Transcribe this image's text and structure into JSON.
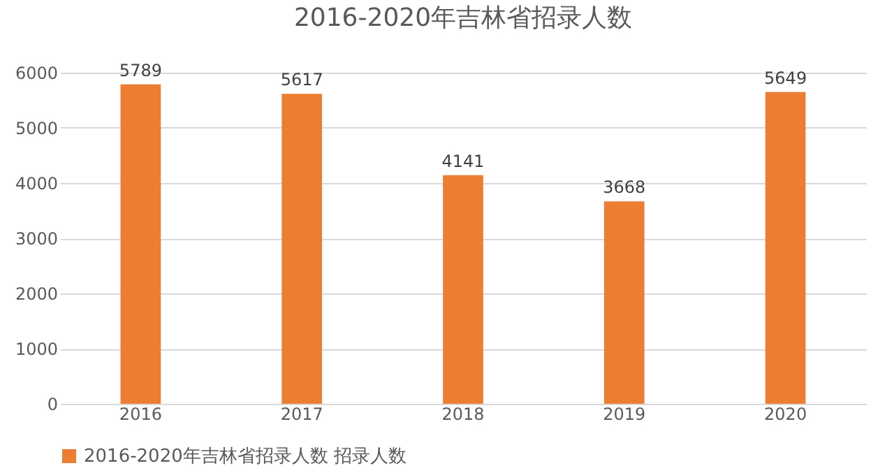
{
  "chart_data": {
    "type": "bar",
    "title": "2016-2020年吉林省招录人数",
    "categories": [
      "2016",
      "2017",
      "2018",
      "2019",
      "2020"
    ],
    "series": [
      {
        "name": "2016-2020年吉林省招录人数 招录人数",
        "color": "#ed7d31",
        "values": [
          5789,
          5617,
          4141,
          3668,
          5649
        ]
      }
    ],
    "ylim": [
      0,
      6000
    ],
    "yticks": [
      0,
      1000,
      2000,
      3000,
      4000,
      5000,
      6000
    ],
    "grid": "y",
    "legend": "bottom",
    "data_labels": true
  }
}
